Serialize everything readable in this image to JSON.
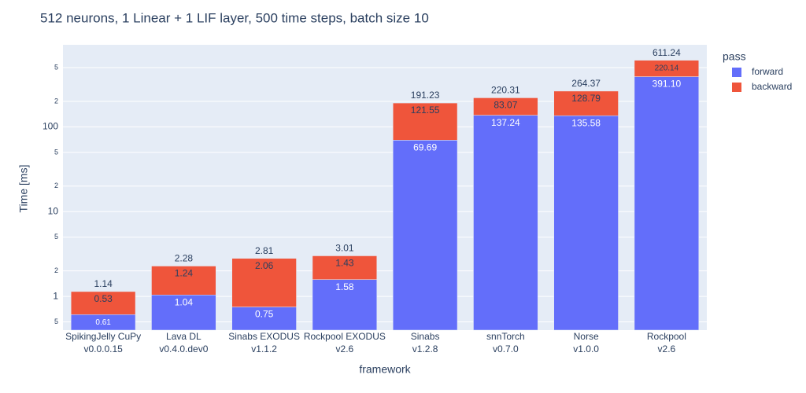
{
  "chart_data": {
    "type": "stacked_bar",
    "title": "512 neurons, 1 Linear + 1 LIF layer, 500 time steps, batch size 10",
    "x_label": "framework",
    "y_label": "Time [ms]",
    "categories": [
      [
        "SpikingJelly CuPy",
        "v0.0.0.15"
      ],
      [
        "Lava DL",
        "v0.4.0.dev0"
      ],
      [
        "Sinabs EXODUS",
        "v1.1.2"
      ],
      [
        "Rockpool EXODUS",
        "v2.6"
      ],
      [
        "Sinabs",
        "v1.2.8"
      ],
      [
        "snnTorch",
        "v0.7.0"
      ],
      [
        "Norse",
        "v1.0.0"
      ],
      [
        "Rockpool",
        "v2.6"
      ]
    ],
    "series": [
      {
        "name": "forward",
        "color": "#636efa",
        "values": [
          0.61,
          1.04,
          0.75,
          1.58,
          69.69,
          137.24,
          135.58,
          391.1
        ],
        "value_labels": [
          "0.61",
          "1.04",
          "0.75",
          "1.58",
          "69.69",
          "137.24",
          "135.58",
          "391.10"
        ]
      },
      {
        "name": "backward",
        "color": "#ef553b",
        "values": [
          0.53,
          1.24,
          2.06,
          1.43,
          121.55,
          83.07,
          128.79,
          220.14
        ]
      }
    ],
    "totals": [
      1.14,
      2.28,
      2.81,
      3.01,
      191.23,
      220.31,
      264.37,
      611.24
    ],
    "log_y": true,
    "ylim": [
      0.4,
      930
    ],
    "yticks": [
      {
        "value": 0.5,
        "label": "5"
      },
      1,
      {
        "value": 2,
        "label": "2"
      },
      {
        "value": 5,
        "label": "5"
      },
      10,
      {
        "value": 20,
        "label": "2"
      },
      {
        "value": 50,
        "label": "5"
      },
      100,
      {
        "value": 200,
        "label": "2"
      },
      {
        "value": 500,
        "label": "5"
      }
    ],
    "grid": true,
    "legend_title": "pass",
    "legend_position": "top-right"
  }
}
